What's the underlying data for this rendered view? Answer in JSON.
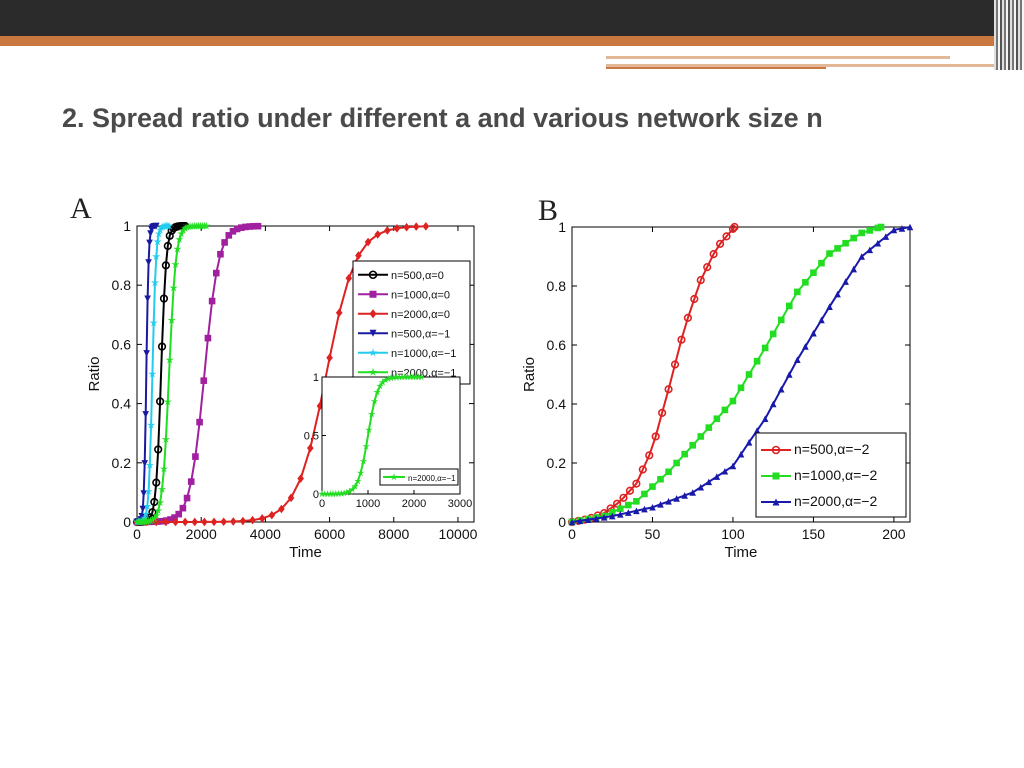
{
  "slide": {
    "title": "2.  Spread ratio under different a and various network size n"
  },
  "chart_data": [
    {
      "panel": "A",
      "type": "line",
      "xlabel": "Time",
      "ylabel": "Ratio",
      "xlim": [
        0,
        10500
      ],
      "ylim": [
        0,
        1
      ],
      "xticks": [
        0,
        2000,
        4000,
        6000,
        8000,
        10000
      ],
      "yticks": [
        0,
        0.2,
        0.4,
        0.6,
        0.8,
        1
      ],
      "ytick_labels": [
        "0",
        "0.2",
        "0.4",
        "0.6",
        "0.8",
        "1"
      ],
      "legend_position": "top-right",
      "series": [
        {
          "name": "n=500,α=0",
          "color": "#000000",
          "marker": "circle",
          "x0": 750,
          "k": 0.0125,
          "tmax": 1500,
          "step": 60
        },
        {
          "name": "n=1000,α=0",
          "color": "#a020a0",
          "marker": "square",
          "x0": 2100,
          "k": 0.0045,
          "tmax": 3800,
          "step": 130
        },
        {
          "name": "n=2000,α=0",
          "color": "#dd2222",
          "marker": "diamond",
          "x0": 5900,
          "k": 0.0022,
          "tmax": 9100,
          "step": 300
        },
        {
          "name": "n=500,α=−1",
          "color": "#1a1aa0",
          "marker": "triangle-down",
          "x0": 290,
          "k": 0.028,
          "tmax": 600,
          "step": 30
        },
        {
          "name": "n=1000,α=−1",
          "color": "#22ccee",
          "marker": "star",
          "x0": 480,
          "k": 0.018,
          "tmax": 1000,
          "step": 40
        },
        {
          "name": "n=2000,α=−1",
          "color": "#22dd22",
          "marker": "star",
          "x0": 1000,
          "k": 0.0095,
          "tmax": 2200,
          "step": 60
        }
      ],
      "inset": {
        "xlim": [
          0,
          3000
        ],
        "ylim": [
          0,
          1
        ],
        "xticks": [
          0,
          1000,
          2000,
          3000
        ],
        "xtick_labels": [
          "0",
          "1000",
          "2000",
          "3000"
        ],
        "yticks": [
          0,
          0.5,
          1
        ],
        "ytick_labels": [
          "0",
          "0.5",
          "1"
        ],
        "series": {
          "name": "n=2000,α=−1",
          "color": "#22dd22",
          "marker": "star",
          "x0": 1000,
          "k": 0.0095,
          "tmax": 2200,
          "step": 60
        },
        "legend_label": "n=2000,α=−1"
      }
    },
    {
      "panel": "B",
      "type": "line",
      "xlabel": "Time",
      "ylabel": "Ratio",
      "xlim": [
        0,
        210
      ],
      "ylim": [
        0,
        1
      ],
      "xticks": [
        0,
        50,
        100,
        150,
        200
      ],
      "yticks": [
        0,
        0.2,
        0.4,
        0.6,
        0.8,
        1
      ],
      "ytick_labels": [
        "0",
        "0.2",
        "0.4",
        "0.6",
        "0.8",
        "1"
      ],
      "legend_position": "bottom-right",
      "series": [
        {
          "name": "n=500,α=−2",
          "color": "#dd2222",
          "marker": "circle",
          "points": [
            [
              0,
              0
            ],
            [
              10,
              0.01
            ],
            [
              20,
              0.03
            ],
            [
              30,
              0.07
            ],
            [
              40,
              0.13
            ],
            [
              50,
              0.25
            ],
            [
              60,
              0.45
            ],
            [
              70,
              0.66
            ],
            [
              80,
              0.82
            ],
            [
              90,
              0.93
            ],
            [
              101,
              1
            ]
          ],
          "step": 4
        },
        {
          "name": "n=1000,α=−2",
          "color": "#22dd22",
          "marker": "square",
          "points": [
            [
              0,
              0
            ],
            [
              20,
              0.02
            ],
            [
              40,
              0.07
            ],
            [
              60,
              0.17
            ],
            [
              80,
              0.29
            ],
            [
              100,
              0.41
            ],
            [
              120,
              0.59
            ],
            [
              140,
              0.78
            ],
            [
              160,
              0.91
            ],
            [
              180,
              0.98
            ],
            [
              192,
              1
            ]
          ],
          "step": 5
        },
        {
          "name": "n=2000,α=−2",
          "color": "#1a1aaa",
          "marker": "triangle-up",
          "points": [
            [
              0,
              0
            ],
            [
              25,
              0.02
            ],
            [
              50,
              0.05
            ],
            [
              75,
              0.1
            ],
            [
              100,
              0.19
            ],
            [
              120,
              0.35
            ],
            [
              140,
              0.55
            ],
            [
              160,
              0.73
            ],
            [
              180,
              0.9
            ],
            [
              200,
              0.99
            ],
            [
              210,
              1
            ]
          ],
          "step": 5
        }
      ]
    }
  ]
}
